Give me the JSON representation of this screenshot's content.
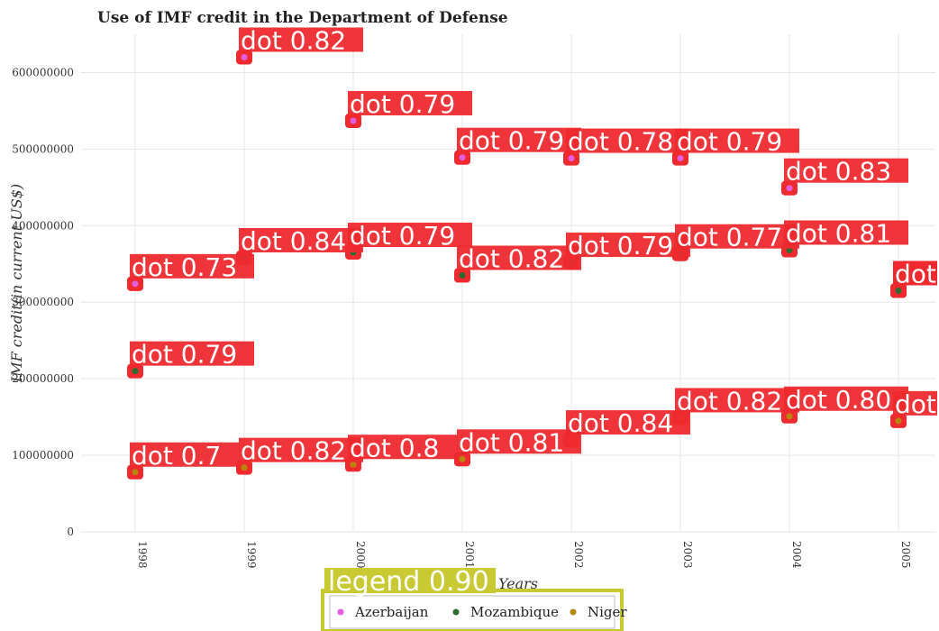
{
  "chart_data": {
    "type": "scatter",
    "title": "Use of IMF credit in the Department of Defense",
    "xlabel": "Years",
    "ylabel": "IMF credit(in current US$)",
    "categories": [
      "1998",
      "1999",
      "2000",
      "2001",
      "2002",
      "2003",
      "2004",
      "2005"
    ],
    "ylim": [
      0,
      650000000
    ],
    "yticks": [
      0,
      100000000,
      200000000,
      300000000,
      400000000,
      500000000,
      600000000
    ],
    "ytick_labels": [
      "0",
      "100000000",
      "200000000",
      "300000000",
      "400000000",
      "500000000",
      "600000000"
    ],
    "grid": true,
    "series": [
      {
        "name": "Azerbaijan",
        "color": "#e15fe0",
        "values": [
          324000000,
          620000000,
          537000000,
          489000000,
          488000000,
          488000000,
          449000000,
          315000000
        ]
      },
      {
        "name": "Mozambique",
        "color": "#2e6b2e",
        "values": [
          210000000,
          358000000,
          365000000,
          335000000,
          352000000,
          363000000,
          368000000,
          315000000
        ]
      },
      {
        "name": "Niger",
        "color": "#b8860b",
        "values": [
          78000000,
          84000000,
          88000000,
          95000000,
          120000000,
          149000000,
          151000000,
          145000000
        ]
      }
    ],
    "annotations": {
      "Azerbaijan": [
        "dot 0.73",
        "dot 0.82",
        "dot 0.79",
        "dot 0.79",
        "dot 0.78",
        "dot 0.79",
        "dot 0.83",
        "dot"
      ],
      "Mozambique": [
        "dot 0.79",
        "dot 0.84",
        "dot 0.79",
        "dot 0.82",
        "dot 0.79",
        "dot 0.77",
        "dot 0.81",
        "dot"
      ],
      "Niger": [
        "dot 0.7",
        "dot 0.82",
        "dot 0.8",
        "dot 0.81",
        "dot 0.84",
        "dot 0.82",
        "dot 0.80",
        "dot"
      ]
    },
    "legend": {
      "title": "legend 0.90",
      "position": "bottom-center",
      "entries": [
        "Azerbaijan",
        "Mozambique",
        "Niger"
      ]
    }
  }
}
